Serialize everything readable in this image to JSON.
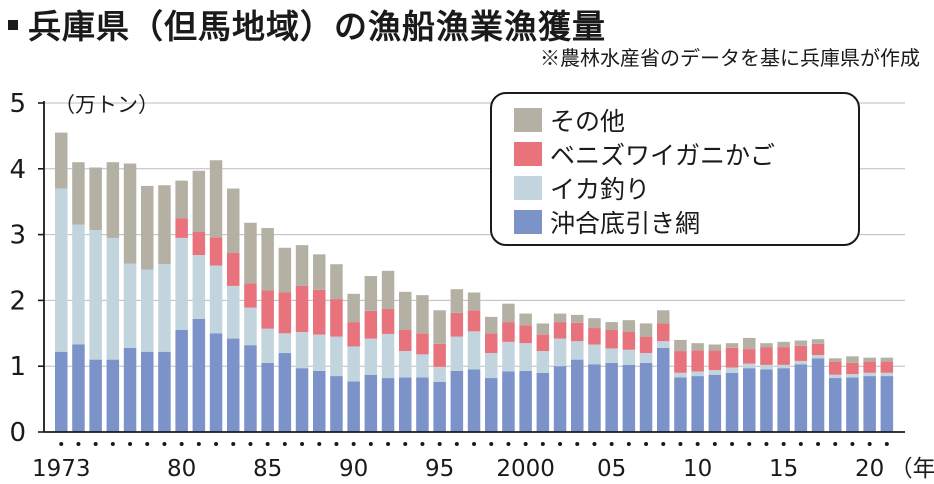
{
  "title": "兵庫県（但馬地域）の漁船漁業漁獲量",
  "source_note": "※農林水産省のデータを基に兵庫県が作成",
  "chart_data": {
    "type": "bar",
    "stacked": true,
    "unit_label": "（万トン）",
    "x_unit_label": "（年）",
    "ylim": [
      0,
      5
    ],
    "y_ticks": [
      0,
      1,
      2,
      3,
      4,
      5
    ],
    "x_tick_labels": [
      {
        "year": 1973,
        "label": "1973"
      },
      {
        "year": 1980,
        "label": "80"
      },
      {
        "year": 1985,
        "label": "85"
      },
      {
        "year": 1990,
        "label": "90"
      },
      {
        "year": 1995,
        "label": "95"
      },
      {
        "year": 2000,
        "label": "2000"
      },
      {
        "year": 2005,
        "label": "05"
      },
      {
        "year": 2010,
        "label": "10"
      },
      {
        "year": 2015,
        "label": "15"
      },
      {
        "year": 2020,
        "label": "20"
      }
    ],
    "categories": [
      1973,
      1974,
      1975,
      1976,
      1977,
      1978,
      1979,
      1980,
      1981,
      1982,
      1983,
      1984,
      1985,
      1986,
      1987,
      1988,
      1989,
      1990,
      1991,
      1992,
      1993,
      1994,
      1995,
      1996,
      1997,
      1998,
      1999,
      2000,
      2001,
      2002,
      2003,
      2004,
      2005,
      2006,
      2007,
      2008,
      2009,
      2010,
      2011,
      2012,
      2013,
      2014,
      2015,
      2016,
      2017,
      2018,
      2019,
      2020,
      2021
    ],
    "series": [
      {
        "name": "沖合底引き網",
        "color": "#7b93c9",
        "values": [
          1.22,
          1.33,
          1.1,
          1.1,
          1.28,
          1.22,
          1.22,
          1.55,
          1.72,
          1.5,
          1.42,
          1.32,
          1.05,
          1.2,
          0.97,
          0.93,
          0.85,
          0.77,
          0.87,
          0.82,
          0.83,
          0.83,
          0.76,
          0.93,
          0.95,
          0.82,
          0.92,
          0.93,
          0.9,
          1.0,
          1.1,
          1.03,
          1.05,
          1.02,
          1.05,
          1.28,
          0.83,
          0.85,
          0.87,
          0.9,
          0.97,
          0.95,
          0.97,
          1.03,
          1.12,
          0.82,
          0.83,
          0.85,
          0.85
        ]
      },
      {
        "name": "イカ釣り",
        "color": "#c2d4dd",
        "values": [
          2.48,
          1.82,
          1.97,
          1.85,
          1.28,
          1.25,
          1.33,
          1.4,
          0.97,
          1.03,
          0.8,
          0.57,
          0.52,
          0.3,
          0.55,
          0.55,
          0.6,
          0.53,
          0.55,
          0.67,
          0.4,
          0.35,
          0.23,
          0.52,
          0.58,
          0.38,
          0.45,
          0.42,
          0.33,
          0.42,
          0.28,
          0.3,
          0.22,
          0.23,
          0.15,
          0.1,
          0.07,
          0.07,
          0.07,
          0.08,
          0.07,
          0.07,
          0.05,
          0.05,
          0.05,
          0.05,
          0.05,
          0.05,
          0.05
        ]
      },
      {
        "name": "ベニズワイガニかご",
        "color": "#e8737c",
        "values": [
          0.0,
          0.0,
          0.0,
          0.0,
          0.0,
          0.0,
          0.0,
          0.3,
          0.35,
          0.43,
          0.5,
          0.37,
          0.58,
          0.62,
          0.7,
          0.68,
          0.57,
          0.37,
          0.42,
          0.38,
          0.32,
          0.32,
          0.35,
          0.36,
          0.32,
          0.3,
          0.3,
          0.27,
          0.25,
          0.25,
          0.28,
          0.25,
          0.28,
          0.27,
          0.25,
          0.27,
          0.33,
          0.32,
          0.3,
          0.3,
          0.22,
          0.27,
          0.27,
          0.23,
          0.17,
          0.2,
          0.17,
          0.17,
          0.17
        ]
      },
      {
        "name": "その他",
        "color": "#b4b1a4",
        "values": [
          0.85,
          0.95,
          0.95,
          1.15,
          1.52,
          1.27,
          1.2,
          0.57,
          0.93,
          1.17,
          0.98,
          0.92,
          0.95,
          0.68,
          0.62,
          0.54,
          0.53,
          0.43,
          0.53,
          0.58,
          0.58,
          0.58,
          0.51,
          0.36,
          0.27,
          0.25,
          0.28,
          0.18,
          0.17,
          0.13,
          0.12,
          0.15,
          0.12,
          0.18,
          0.2,
          0.2,
          0.17,
          0.11,
          0.09,
          0.07,
          0.17,
          0.06,
          0.08,
          0.08,
          0.07,
          0.05,
          0.1,
          0.06,
          0.06
        ]
      }
    ],
    "legend_order": [
      "その他",
      "ベニズワイガニかご",
      "イカ釣り",
      "沖合底引き網"
    ],
    "legend_position": "top-right"
  }
}
